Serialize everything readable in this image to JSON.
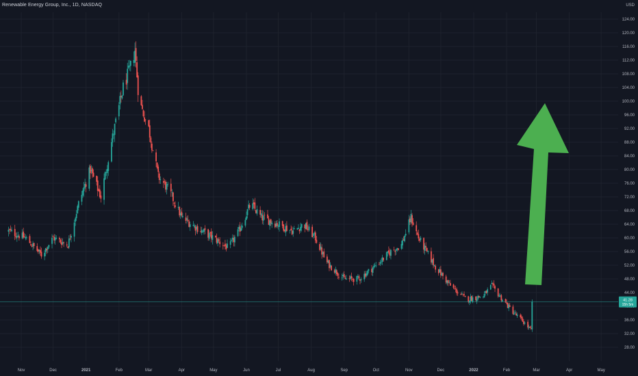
{
  "header": {
    "symbol_line": "Renewable Energy Group, Inc., 1D, NASDAQ",
    "currency": "USD"
  },
  "colors": {
    "background": "#131722",
    "grid": "#1e222d",
    "up": "#26a69a",
    "down": "#ef5350",
    "axis_text": "#b2b5be",
    "arrow": "#4caf50",
    "price_line": "#26a69a"
  },
  "chart_data": {
    "type": "candlestick",
    "title": "Renewable Energy Group, Inc., 1D, NASDAQ",
    "y_axis": {
      "unit": "USD",
      "range": [
        24,
        126
      ],
      "ticks": [
        28,
        32,
        36,
        40,
        44,
        48,
        52,
        56,
        60,
        64,
        68,
        72,
        76,
        80,
        84,
        88,
        92,
        96,
        100,
        104,
        108,
        112,
        116,
        120,
        124
      ]
    },
    "x_axis": {
      "range_months": [
        "Nov 2020",
        "May 2022"
      ],
      "ticks": [
        {
          "label": "Nov",
          "date": "2020-11-01"
        },
        {
          "label": "Dec",
          "date": "2020-12-01"
        },
        {
          "label": "2021",
          "date": "2021-01-01",
          "bold": true
        },
        {
          "label": "Feb",
          "date": "2021-02-01"
        },
        {
          "label": "Mar",
          "date": "2021-03-01"
        },
        {
          "label": "Apr",
          "date": "2021-04-01"
        },
        {
          "label": "May",
          "date": "2021-05-01"
        },
        {
          "label": "Jun",
          "date": "2021-06-01"
        },
        {
          "label": "Jul",
          "date": "2021-07-01"
        },
        {
          "label": "Aug",
          "date": "2021-08-01"
        },
        {
          "label": "Sep",
          "date": "2021-09-01"
        },
        {
          "label": "Oct",
          "date": "2021-10-01"
        },
        {
          "label": "Nov",
          "date": "2021-11-01"
        },
        {
          "label": "Dec",
          "date": "2021-12-01"
        },
        {
          "label": "2022",
          "date": "2022-01-01",
          "bold": true
        },
        {
          "label": "Feb",
          "date": "2022-02-01"
        },
        {
          "label": "Mar",
          "date": "2022-03-01"
        },
        {
          "label": "Apr",
          "date": "2022-04-01"
        },
        {
          "label": "May",
          "date": "2022-05-01"
        }
      ]
    },
    "price_path": [
      {
        "date": "2020-10-20",
        "close": 62
      },
      {
        "date": "2020-11-05",
        "close": 60
      },
      {
        "date": "2020-11-20",
        "close": 55
      },
      {
        "date": "2020-12-01",
        "close": 60
      },
      {
        "date": "2020-12-15",
        "close": 58
      },
      {
        "date": "2020-12-25",
        "close": 70
      },
      {
        "date": "2021-01-05",
        "close": 80
      },
      {
        "date": "2021-01-15",
        "close": 72
      },
      {
        "date": "2021-01-25",
        "close": 88
      },
      {
        "date": "2021-02-05",
        "close": 104
      },
      {
        "date": "2021-02-12",
        "close": 110
      },
      {
        "date": "2021-02-16",
        "close": 115
      },
      {
        "date": "2021-02-20",
        "close": 100
      },
      {
        "date": "2021-03-01",
        "close": 92
      },
      {
        "date": "2021-03-10",
        "close": 78
      },
      {
        "date": "2021-03-20",
        "close": 74
      },
      {
        "date": "2021-04-01",
        "close": 66
      },
      {
        "date": "2021-04-15",
        "close": 63
      },
      {
        "date": "2021-05-01",
        "close": 60
      },
      {
        "date": "2021-05-15",
        "close": 57
      },
      {
        "date": "2021-05-25",
        "close": 62
      },
      {
        "date": "2021-06-05",
        "close": 70
      },
      {
        "date": "2021-06-15",
        "close": 66
      },
      {
        "date": "2021-07-01",
        "close": 64
      },
      {
        "date": "2021-07-15",
        "close": 62
      },
      {
        "date": "2021-07-25",
        "close": 64
      },
      {
        "date": "2021-08-05",
        "close": 60
      },
      {
        "date": "2021-08-15",
        "close": 53
      },
      {
        "date": "2021-09-01",
        "close": 48
      },
      {
        "date": "2021-09-15",
        "close": 48
      },
      {
        "date": "2021-10-01",
        "close": 52
      },
      {
        "date": "2021-10-15",
        "close": 56
      },
      {
        "date": "2021-10-25",
        "close": 58
      },
      {
        "date": "2021-11-03",
        "close": 66
      },
      {
        "date": "2021-11-10",
        "close": 60
      },
      {
        "date": "2021-11-25",
        "close": 52
      },
      {
        "date": "2021-12-10",
        "close": 46
      },
      {
        "date": "2021-12-25",
        "close": 42
      },
      {
        "date": "2022-01-10",
        "close": 43
      },
      {
        "date": "2022-01-18",
        "close": 46
      },
      {
        "date": "2022-01-28",
        "close": 42
      },
      {
        "date": "2022-02-08",
        "close": 38
      },
      {
        "date": "2022-02-15",
        "close": 36
      },
      {
        "date": "2022-02-24",
        "close": 33
      },
      {
        "date": "2022-02-25",
        "close": 41
      }
    ],
    "last_price": {
      "label": "41.28",
      "countdown": "15h 5m",
      "value": 41.28
    },
    "annotation": {
      "type": "arrow",
      "direction": "up",
      "color": "#4caf50"
    }
  }
}
